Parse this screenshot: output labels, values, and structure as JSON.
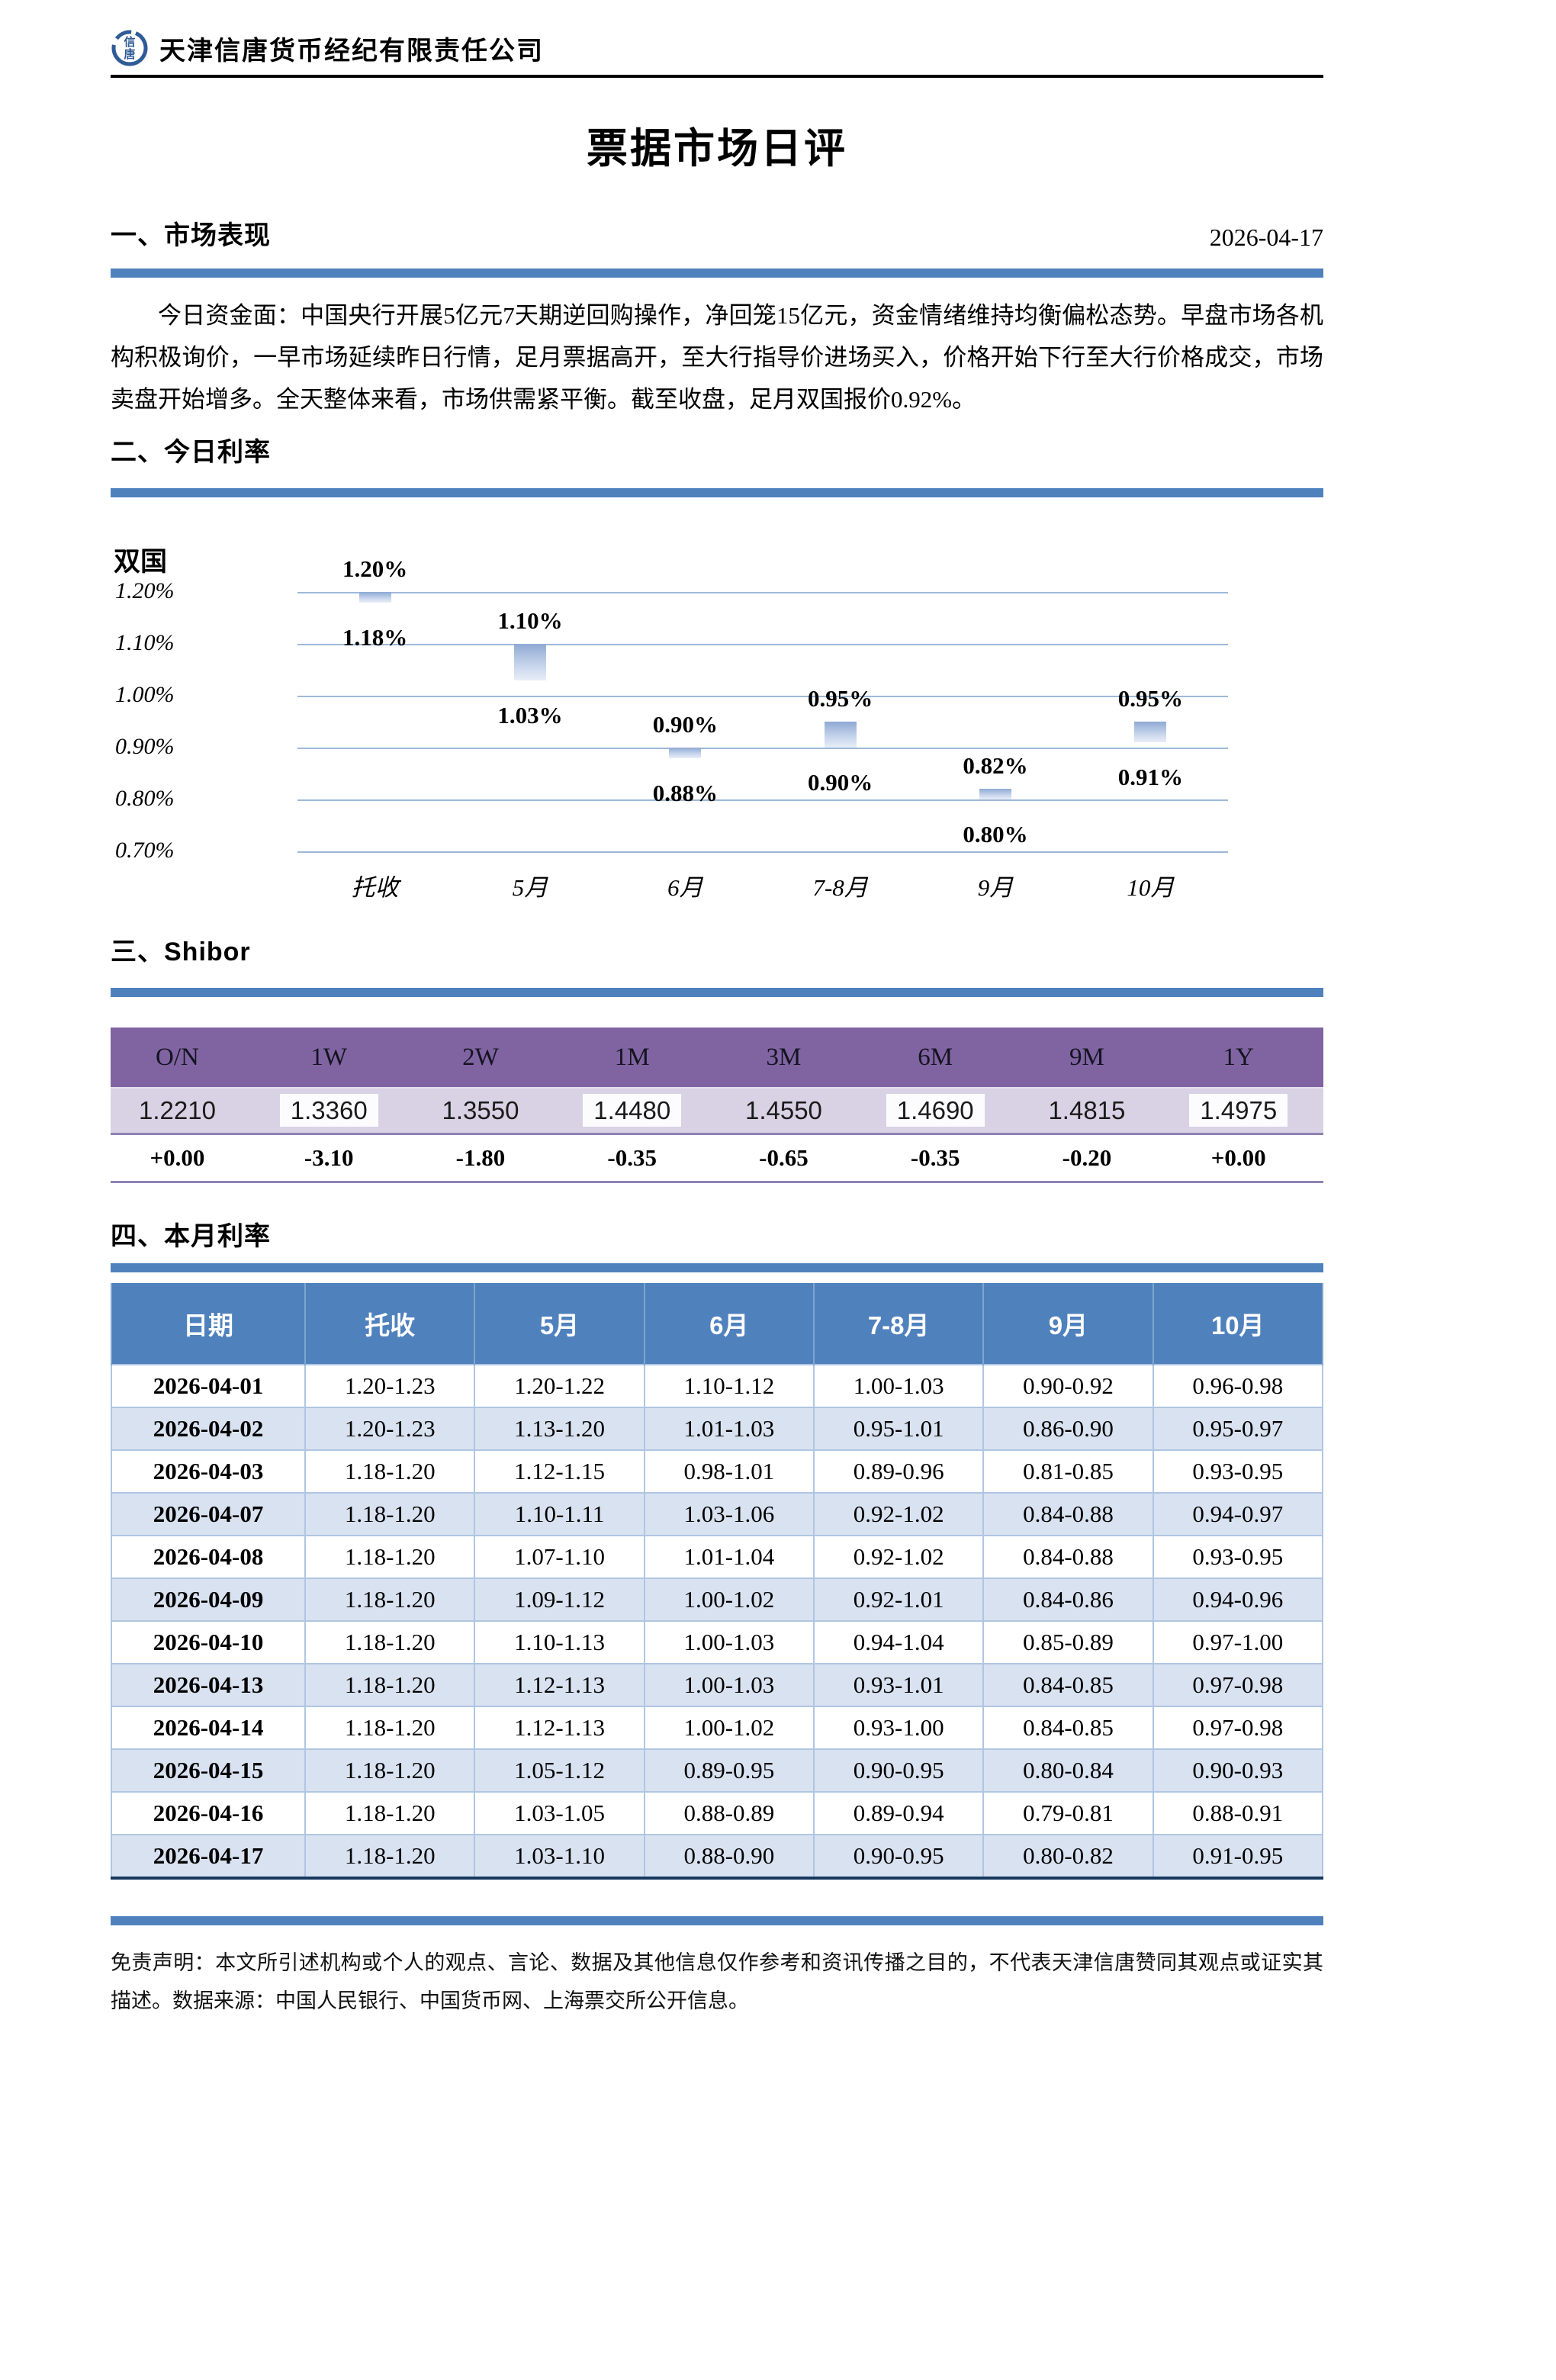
{
  "header": {
    "company": "天津信唐货币经纪有限责任公司",
    "logo_text": "信唐"
  },
  "title": "票据市场日评",
  "section1": {
    "heading": "一、市场表现",
    "date": "2026-04-17",
    "paragraph": "今日资金面：中国央行开展5亿元7天期逆回购操作，净回笼15亿元，资金情绪维持均衡偏松态势。早盘市场各机构积极询价，一早市场延续昨日行情，足月票据高开，至大行指导价进场买入，价格开始下行至大行价格成交，市场卖盘开始增多。全天整体来看，市场供需紧平衡。截至收盘，足月双国报价0.92%。"
  },
  "section2": {
    "heading": "二、今日利率"
  },
  "section3": {
    "heading": "三、Shibor"
  },
  "section4": {
    "heading": "四、本月利率"
  },
  "chart_data": {
    "type": "bar",
    "subtype": "floating-range-bar",
    "title": "双国",
    "categories": [
      "托收",
      "5月",
      "6月",
      "7-8月",
      "9月",
      "10月"
    ],
    "series": [
      {
        "name": "双国利率区间",
        "low": [
          1.18,
          1.03,
          0.88,
          0.9,
          0.8,
          0.91
        ],
        "high": [
          1.2,
          1.1,
          0.9,
          0.95,
          0.82,
          0.95
        ]
      }
    ],
    "labels_high": [
      "1.20%",
      "1.10%",
      "0.90%",
      "0.95%",
      "0.82%",
      "0.95%"
    ],
    "labels_low": [
      "1.18%",
      "1.03%",
      "0.88%",
      "0.90%",
      "0.80%",
      "0.91%"
    ],
    "yticks": [
      1.2,
      1.1,
      1.0,
      0.9,
      0.8,
      0.7
    ],
    "ytick_labels": [
      "1.20%",
      "1.10%",
      "1.00%",
      "0.90%",
      "0.80%",
      "0.70%"
    ],
    "ylim": [
      0.7,
      1.2
    ],
    "grid": true,
    "legend_position": "none",
    "bar_color_gradient": [
      "#8FA9D4",
      "#E9EEF8"
    ],
    "gridline_color": "#9DB9D9"
  },
  "shibor": {
    "columns": [
      "O/N",
      "1W",
      "2W",
      "1M",
      "3M",
      "6M",
      "9M",
      "1Y"
    ],
    "values": [
      "1.2210",
      "1.3360",
      "1.3550",
      "1.4480",
      "1.4550",
      "1.4690",
      "1.4815",
      "1.4975"
    ],
    "highlighted_columns": [
      1,
      3,
      5,
      7
    ],
    "changes": [
      "+0.00",
      "-3.10",
      "-1.80",
      "-0.35",
      "-0.65",
      "-0.35",
      "-0.20",
      "+0.00"
    ]
  },
  "monthly": {
    "columns": [
      "日期",
      "托收",
      "5月",
      "6月",
      "7-8月",
      "9月",
      "10月"
    ],
    "rows": [
      [
        "2026-04-01",
        "1.20-1.23",
        "1.20-1.22",
        "1.10-1.12",
        "1.00-1.03",
        "0.90-0.92",
        "0.96-0.98"
      ],
      [
        "2026-04-02",
        "1.20-1.23",
        "1.13-1.20",
        "1.01-1.03",
        "0.95-1.01",
        "0.86-0.90",
        "0.95-0.97"
      ],
      [
        "2026-04-03",
        "1.18-1.20",
        "1.12-1.15",
        "0.98-1.01",
        "0.89-0.96",
        "0.81-0.85",
        "0.93-0.95"
      ],
      [
        "2026-04-07",
        "1.18-1.20",
        "1.10-1.11",
        "1.03-1.06",
        "0.92-1.02",
        "0.84-0.88",
        "0.94-0.97"
      ],
      [
        "2026-04-08",
        "1.18-1.20",
        "1.07-1.10",
        "1.01-1.04",
        "0.92-1.02",
        "0.84-0.88",
        "0.93-0.95"
      ],
      [
        "2026-04-09",
        "1.18-1.20",
        "1.09-1.12",
        "1.00-1.02",
        "0.92-1.01",
        "0.84-0.86",
        "0.94-0.96"
      ],
      [
        "2026-04-10",
        "1.18-1.20",
        "1.10-1.13",
        "1.00-1.03",
        "0.94-1.04",
        "0.85-0.89",
        "0.97-1.00"
      ],
      [
        "2026-04-13",
        "1.18-1.20",
        "1.12-1.13",
        "1.00-1.03",
        "0.93-1.01",
        "0.84-0.85",
        "0.97-0.98"
      ],
      [
        "2026-04-14",
        "1.18-1.20",
        "1.12-1.13",
        "1.00-1.02",
        "0.93-1.00",
        "0.84-0.85",
        "0.97-0.98"
      ],
      [
        "2026-04-15",
        "1.18-1.20",
        "1.05-1.12",
        "0.89-0.95",
        "0.90-0.95",
        "0.80-0.84",
        "0.90-0.93"
      ],
      [
        "2026-04-16",
        "1.18-1.20",
        "1.03-1.05",
        "0.88-0.89",
        "0.89-0.94",
        "0.79-0.81",
        "0.88-0.91"
      ],
      [
        "2026-04-17",
        "1.18-1.20",
        "1.03-1.10",
        "0.88-0.90",
        "0.90-0.95",
        "0.80-0.82",
        "0.91-0.95"
      ]
    ]
  },
  "disclaimer": "免责声明：本文所引述机构或个人的观点、言论、数据及其他信息仅作参考和资讯传播之目的，不代表天津信唐赞同其观点或证实其描述。数据来源：中国人民银行、中国货币网、上海票交所公开信息。",
  "colors": {
    "accent_blue": "#4F81BD",
    "accent_purple": "#8064A2",
    "lavender_row": "#D9D2E4",
    "alt_row_blue": "#D9E2F1",
    "table_bottom_border": "#17375E"
  }
}
